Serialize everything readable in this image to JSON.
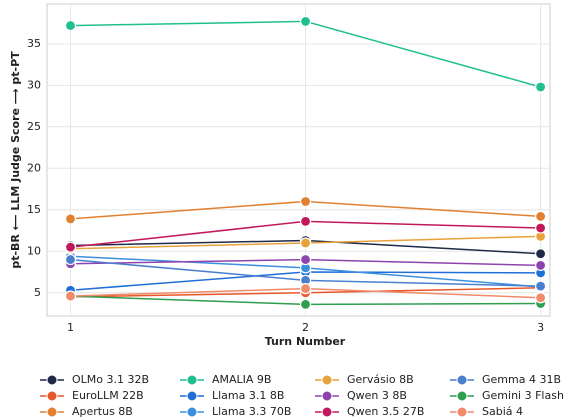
{
  "chart_data": {
    "type": "line",
    "xlabel": "Turn Number",
    "ylabel": "pt-BR  ⟵  LLM Judge Score  ⟶  pt-PT",
    "x": [
      1,
      2,
      3
    ],
    "xlim": [
      0.9,
      3.04
    ],
    "xticks": [
      1,
      2,
      3
    ],
    "ylim": [
      2.2,
      39.8
    ],
    "yticks": [
      5,
      10,
      15,
      20,
      25,
      30,
      35
    ],
    "grid": true,
    "legend": "bottom",
    "series": [
      {
        "name": "OLMo 3.1 32B",
        "color": "#1f2a44",
        "values": [
          10.7,
          11.3,
          9.7
        ]
      },
      {
        "name": "EuroLLM 22B",
        "color": "#e8572a",
        "values": [
          4.5,
          5.0,
          5.6
        ]
      },
      {
        "name": "Apertus 8B",
        "color": "#e08030",
        "values": [
          13.9,
          16.0,
          14.2
        ]
      },
      {
        "name": "AMALIA 9B",
        "color": "#1fbf8f",
        "values": [
          37.2,
          37.7,
          29.8
        ]
      },
      {
        "name": "Llama 3.1 8B",
        "color": "#1f6fd6",
        "values": [
          5.3,
          7.5,
          7.4
        ]
      },
      {
        "name": "Llama 3.3 70B",
        "color": "#3b8fe0",
        "values": [
          9.4,
          8.0,
          5.7
        ]
      },
      {
        "name": "Gervásio 8B",
        "color": "#e8a23a",
        "values": [
          10.3,
          11.0,
          11.8
        ]
      },
      {
        "name": "Qwen 3 8B",
        "color": "#8e44ad",
        "values": [
          8.5,
          9.0,
          8.3
        ]
      },
      {
        "name": "Qwen 3.5 27B",
        "color": "#c2185b",
        "values": [
          10.5,
          13.6,
          12.8
        ]
      },
      {
        "name": "Gemma 4 31B",
        "color": "#4a7fd0",
        "values": [
          9.0,
          6.5,
          5.8
        ]
      },
      {
        "name": "Gemini 3 Flash",
        "color": "#2e9e4f",
        "values": [
          4.6,
          3.6,
          3.7
        ]
      },
      {
        "name": "Sabiá 4",
        "color": "#f08a6a",
        "values": [
          4.6,
          5.5,
          4.4
        ]
      }
    ]
  }
}
